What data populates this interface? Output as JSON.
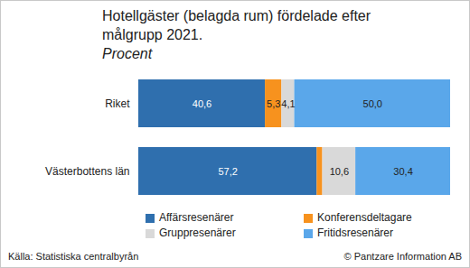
{
  "chart_data": {
    "type": "bar",
    "title": "Hotellgäster (belagda rum) fördelade efter målgrupp 2021.",
    "subtitle": "Procent",
    "source": "Källa: Statistiska centralbyrån",
    "credit": "© Pantzare Information AB",
    "orientation": "horizontal",
    "stacked": true,
    "data_labels": true,
    "tick_labels": "y",
    "legend": "bottom",
    "xlim": [
      0,
      100
    ],
    "categories": [
      "Riket",
      "Västerbottens län"
    ],
    "series": [
      {
        "name": "Affärsresenärer",
        "color": "#2f6fae",
        "values": [
          40.6,
          57.2
        ],
        "value_labels": [
          "40,6",
          "57,2"
        ]
      },
      {
        "name": "Konferensdeltagare",
        "color": "#f7921e",
        "values": [
          5.3,
          1.8
        ],
        "value_labels": [
          "5,3",
          null
        ]
      },
      {
        "name": "Gruppresenärer",
        "color": "#d9d9d9",
        "values": [
          4.1,
          10.6
        ],
        "value_labels": [
          "4,1",
          "10,6"
        ]
      },
      {
        "name": "Fritidsresenärer",
        "color": "#5aa7ea",
        "values": [
          50.0,
          30.4
        ],
        "value_labels": [
          "50,0",
          "30,4"
        ]
      }
    ]
  }
}
